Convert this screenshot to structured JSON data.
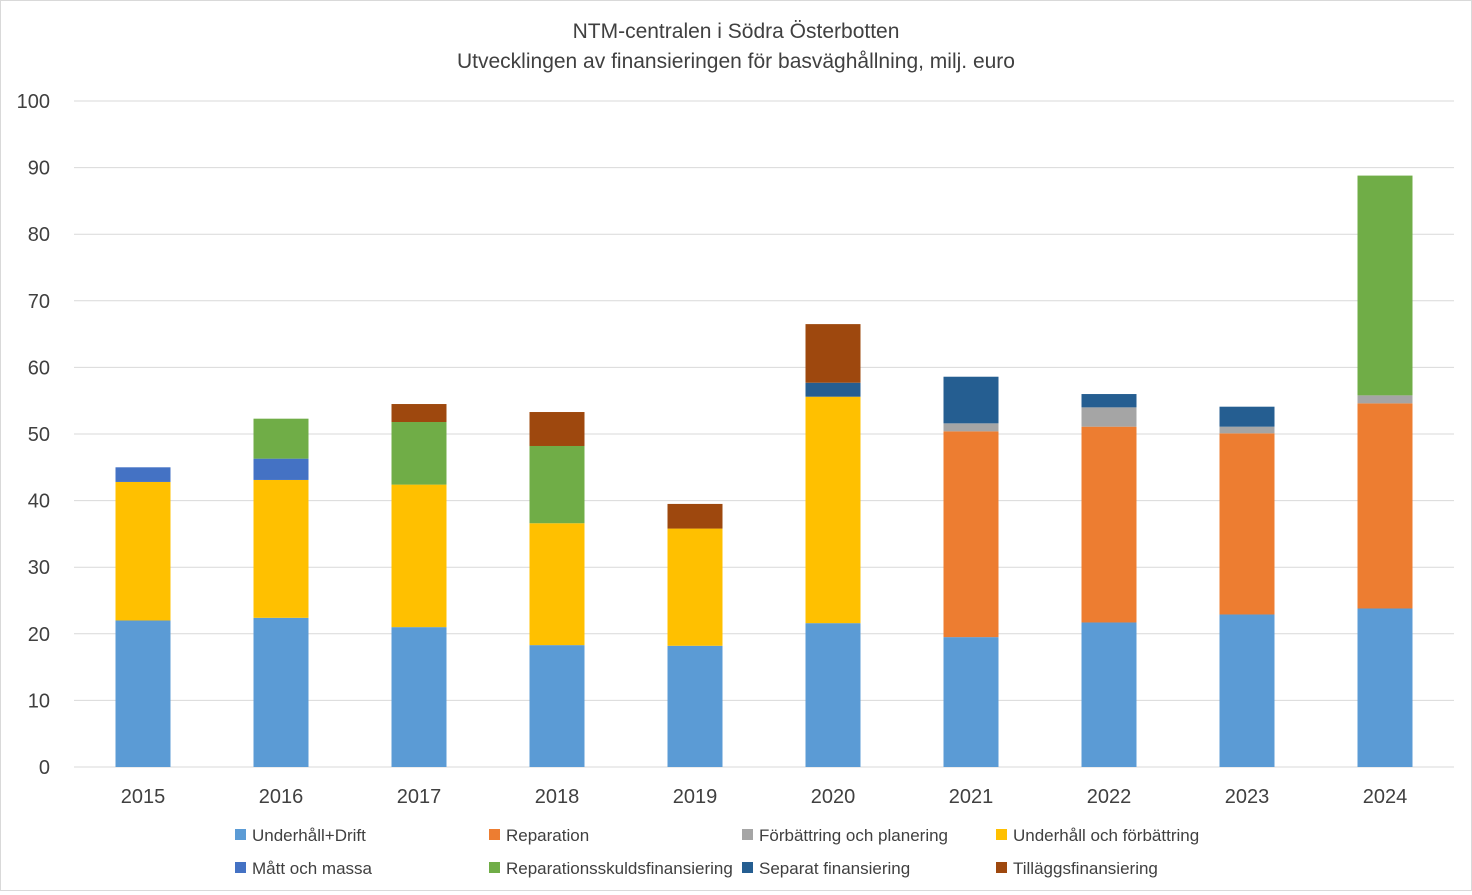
{
  "chart_data": {
    "type": "bar",
    "stacked": true,
    "title": "NTM-centralen i Södra Österbotten",
    "subtitle": "Utvecklingen av finansieringen för basväghållning, milj. euro",
    "xlabel": "",
    "ylabel": "",
    "ylim": [
      0,
      100
    ],
    "yticks": [
      0,
      10,
      20,
      30,
      40,
      50,
      60,
      70,
      80,
      90,
      100
    ],
    "grid": true,
    "legend_position": "bottom",
    "categories": [
      "2015",
      "2016",
      "2017",
      "2018",
      "2019",
      "2020",
      "2021",
      "2022",
      "2023",
      "2024"
    ],
    "series": [
      {
        "name": "Underhåll+Drift",
        "color": "#5B9BD5",
        "values": [
          22.0,
          22.4,
          21.0,
          18.3,
          18.2,
          21.6,
          19.5,
          21.7,
          22.9,
          23.8
        ]
      },
      {
        "name": "Reparation",
        "color": "#ED7D31",
        "values": [
          0,
          0,
          0,
          0,
          0,
          0,
          30.9,
          29.4,
          27.2,
          30.8
        ]
      },
      {
        "name": "Förbättring och planering",
        "color": "#A5A5A5",
        "values": [
          0,
          0,
          0,
          0,
          0,
          0,
          1.2,
          2.9,
          1.0,
          1.2
        ]
      },
      {
        "name": "Underhåll och förbättring",
        "color": "#FFC000",
        "values": [
          20.8,
          20.7,
          21.4,
          18.3,
          17.6,
          34.0,
          0,
          0,
          0,
          0
        ]
      },
      {
        "name": "Mått och massa",
        "color": "#4472C4",
        "values": [
          2.2,
          3.2,
          0,
          0,
          0,
          0,
          0,
          0,
          0,
          0
        ]
      },
      {
        "name": "Reparationsskuldsfinansiering",
        "color": "#70AD47",
        "values": [
          0,
          6.0,
          9.4,
          11.6,
          0,
          0,
          0,
          0,
          0,
          33.0
        ]
      },
      {
        "name": "Separat finansiering",
        "color": "#255E91",
        "values": [
          0,
          0,
          0,
          0,
          0,
          2.1,
          7.0,
          2.0,
          3.0,
          0
        ]
      },
      {
        "name": "Tilläggsfinansiering",
        "color": "#9E480E",
        "values": [
          0,
          0,
          2.7,
          5.1,
          3.7,
          8.8,
          0,
          0,
          0,
          0
        ]
      }
    ]
  }
}
